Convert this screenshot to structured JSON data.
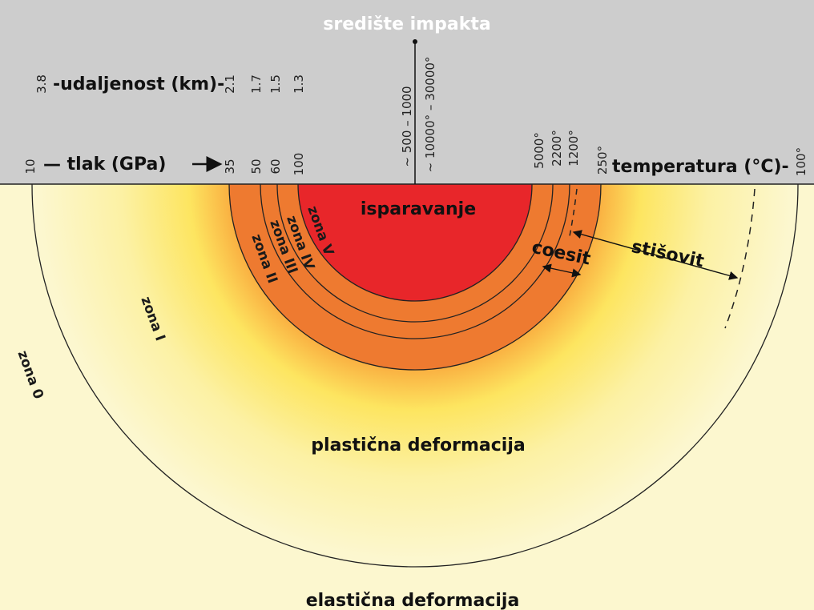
{
  "header": {
    "title": "središte impakta",
    "distance_label": "-udaljenost (km)-",
    "pressure_label": "— tlak (GPa)",
    "temperature_label": "temperatura (°C)-"
  },
  "distance_ticks": [
    "3.8",
    "2.1",
    "1.7",
    "1.5",
    "1.3"
  ],
  "pressure_ticks": [
    "10",
    "35",
    "50",
    "60",
    "100"
  ],
  "center_ticks": [
    "~ 500 – 1000",
    "~ 10000° – 30000°"
  ],
  "temperature_ticks": [
    "5000°",
    "2200°",
    "1200°",
    "250°",
    "100°"
  ],
  "zones": {
    "vaporization": "isparavanje",
    "zone_v": "zona V",
    "zone_iv": "zona IV",
    "zone_iii": "zona III",
    "zone_ii": "zona II",
    "zone_i": "zona I",
    "zone_0": "zona 0",
    "coesite": "coesit",
    "stishovite": "stišovit",
    "plastic": "plastična deformacija",
    "elastic": "elastična deformacija"
  },
  "colors": {
    "header_bg": "#cdcdcd",
    "core_red": "#e8262a",
    "ring_orange": "#ee7a30",
    "ring_yellow": "#fde96a",
    "background_pale": "#fcf7cf"
  }
}
